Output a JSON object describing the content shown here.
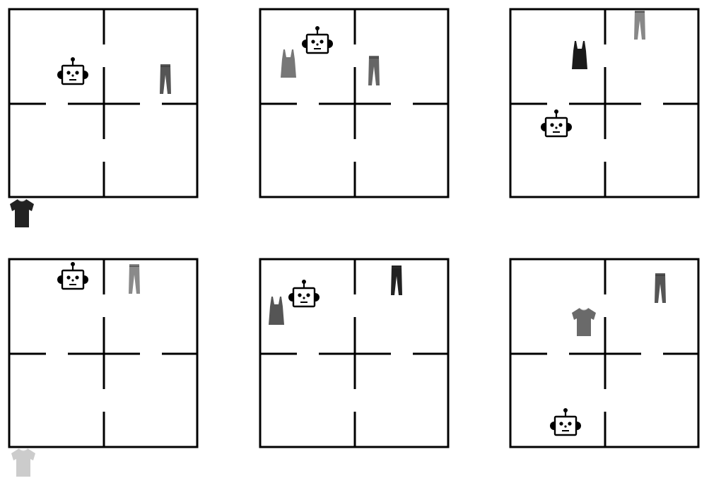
{
  "colors": {
    "background": "#ffffff",
    "wall": "#000000",
    "robot_face": "#ffffff"
  },
  "grid": {
    "rows": 2,
    "cols": 2
  },
  "panels": [
    {
      "id": "panel-1",
      "gaps": [
        "left-horizontal",
        "right-horizontal",
        "top-vertical-lower",
        "bottom-vertical-upper"
      ],
      "items": [
        {
          "kind": "robot",
          "icon": "robot-icon",
          "room": "top-left"
        },
        {
          "kind": "garment",
          "icon": "trousers-icon",
          "room": "top-right",
          "shade": "#555555"
        },
        {
          "kind": "garment",
          "icon": "tshirt-icon",
          "room": "outside-bottom-left",
          "shade": "#222222"
        }
      ]
    },
    {
      "id": "panel-2",
      "gaps": [
        "left-horizontal",
        "right-horizontal",
        "top-vertical-lower",
        "bottom-vertical-upper"
      ],
      "items": [
        {
          "kind": "robot",
          "icon": "robot-icon",
          "room": "top-left"
        },
        {
          "kind": "garment",
          "icon": "tank-top-icon",
          "room": "top-left",
          "shade": "#777777"
        },
        {
          "kind": "garment",
          "icon": "trousers-icon",
          "room": "top-right",
          "shade": "#666666"
        }
      ]
    },
    {
      "id": "panel-3",
      "gaps": [
        "left-horizontal",
        "right-horizontal",
        "top-vertical-lower",
        "bottom-vertical-upper"
      ],
      "items": [
        {
          "kind": "robot",
          "icon": "robot-icon",
          "room": "bottom-left"
        },
        {
          "kind": "garment",
          "icon": "tank-top-icon",
          "room": "top-left",
          "shade": "#1a1a1a"
        },
        {
          "kind": "garment",
          "icon": "trousers-icon",
          "room": "top-right",
          "shade": "#888888"
        }
      ]
    },
    {
      "id": "panel-4",
      "gaps": [
        "left-horizontal",
        "right-horizontal",
        "top-vertical-lower",
        "bottom-vertical-upper"
      ],
      "items": [
        {
          "kind": "robot",
          "icon": "robot-icon",
          "room": "top-left"
        },
        {
          "kind": "garment",
          "icon": "trousers-icon",
          "room": "top-right",
          "shade": "#8a8a8a"
        },
        {
          "kind": "garment",
          "icon": "tshirt-icon",
          "room": "outside-bottom-left",
          "shade": "#cccccc"
        }
      ]
    },
    {
      "id": "panel-5",
      "gaps": [
        "left-horizontal",
        "right-horizontal",
        "top-vertical-lower",
        "bottom-vertical-upper"
      ],
      "items": [
        {
          "kind": "robot",
          "icon": "robot-icon",
          "room": "top-left"
        },
        {
          "kind": "garment",
          "icon": "tank-top-icon",
          "room": "top-left",
          "shade": "#555555"
        },
        {
          "kind": "garment",
          "icon": "trousers-icon",
          "room": "top-right",
          "shade": "#222222"
        }
      ]
    },
    {
      "id": "panel-6",
      "gaps": [
        "left-horizontal",
        "right-horizontal",
        "top-vertical-lower",
        "bottom-vertical-upper"
      ],
      "items": [
        {
          "kind": "robot",
          "icon": "robot-icon",
          "room": "bottom-left"
        },
        {
          "kind": "garment",
          "icon": "tshirt-icon",
          "room": "top-left",
          "shade": "#6a6a6a"
        },
        {
          "kind": "garment",
          "icon": "trousers-icon",
          "room": "top-right",
          "shade": "#555555"
        }
      ]
    }
  ]
}
